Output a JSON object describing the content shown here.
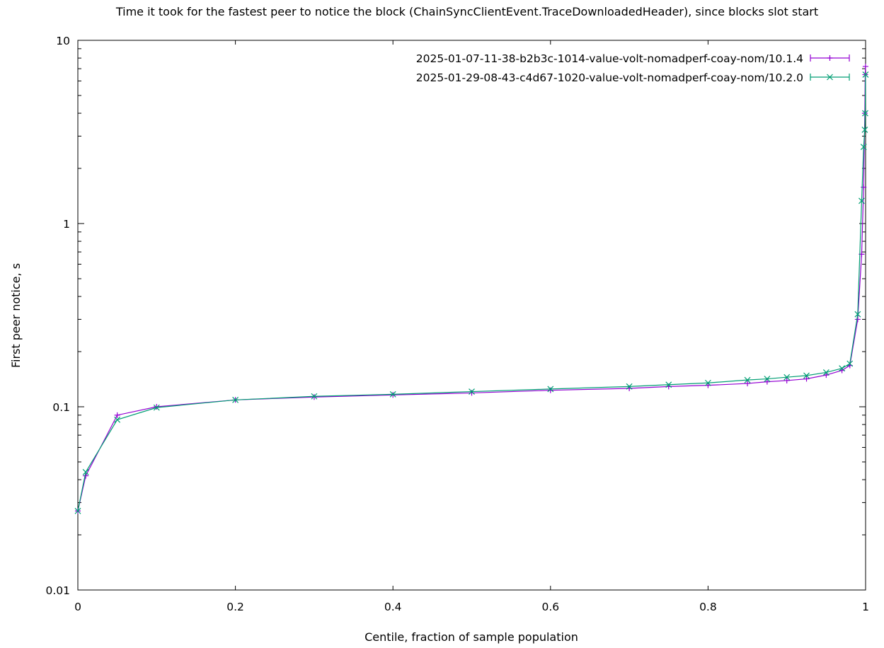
{
  "chart_data": {
    "type": "line",
    "title": "Time it took for the fastest peer to notice the block (ChainSyncClientEvent.TraceDownloadedHeader), since blocks slot start",
    "xlabel": "Centile, fraction of sample population",
    "ylabel": "First peer notice, s",
    "xlim": [
      0,
      1
    ],
    "ylim": [
      0.01,
      10
    ],
    "yscale": "log",
    "xticks": [
      "0",
      "0.2",
      "0.4",
      "0.6",
      "0.8",
      "1"
    ],
    "yticks": [
      "0.01",
      "0.1",
      "1",
      "10"
    ],
    "grid": false,
    "legend_position": "top-right",
    "x": [
      0,
      0.01,
      0.05,
      0.1,
      0.2,
      0.3,
      0.4,
      0.5,
      0.6,
      0.7,
      0.75,
      0.8,
      0.85,
      0.875,
      0.9,
      0.925,
      0.95,
      0.97,
      0.98,
      0.99,
      0.995,
      0.9975,
      0.999,
      0.9995,
      0.9999
    ],
    "series": [
      {
        "name": "2025-01-07-11-38-b2b3c-1014-value-volt-nomadperf-coay-nom/10.1.4",
        "color": "#9400d3",
        "marker": "plus",
        "values": [
          0.027,
          0.042,
          0.09,
          0.1,
          0.109,
          0.113,
          0.116,
          0.119,
          0.123,
          0.126,
          0.129,
          0.131,
          0.134,
          0.137,
          0.139,
          0.142,
          0.149,
          0.158,
          0.168,
          0.3,
          0.68,
          1.58,
          4.0,
          6.5,
          7.2
        ]
      },
      {
        "name": "2025-01-29-08-43-c4d67-1020-value-volt-nomadperf-coay-nom/10.2.0",
        "color": "#009e73",
        "marker": "x",
        "values": [
          0.027,
          0.044,
          0.085,
          0.099,
          0.109,
          0.114,
          0.117,
          0.121,
          0.125,
          0.129,
          0.132,
          0.135,
          0.14,
          0.142,
          0.145,
          0.148,
          0.154,
          0.162,
          0.172,
          0.32,
          1.33,
          2.62,
          3.25,
          4.0,
          6.5
        ]
      }
    ]
  }
}
